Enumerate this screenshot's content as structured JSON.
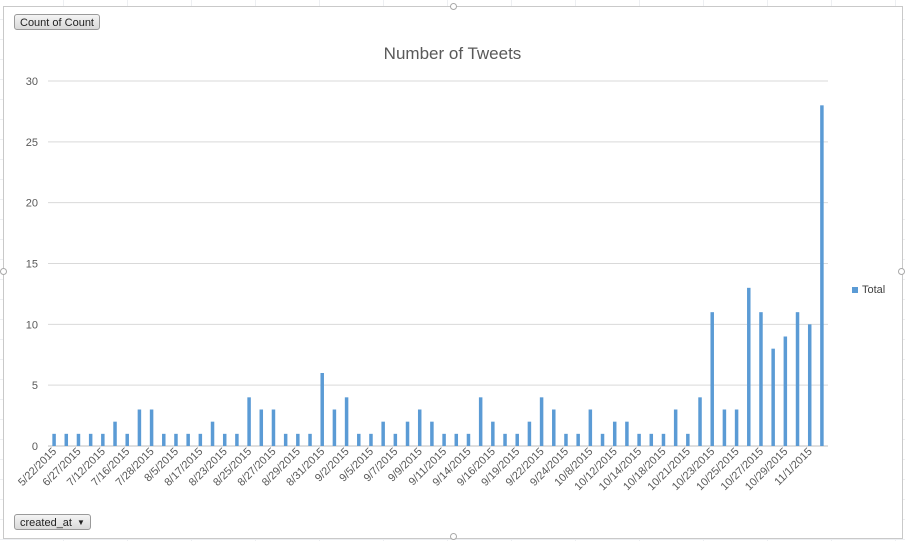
{
  "pivot_buttons": {
    "values_field": "Count of Count",
    "axis_field": "created_at",
    "dropdown_icon": "chevron-down-icon"
  },
  "chart_data": {
    "type": "bar",
    "title": "Number of Tweets",
    "xlabel": "",
    "ylabel": "",
    "ylim": [
      0,
      30
    ],
    "yticks": [
      0,
      5,
      10,
      15,
      20,
      25,
      30
    ],
    "grid": true,
    "legend_position": "right",
    "color": "#5b9bd5",
    "series": [
      {
        "name": "Total",
        "values": [
          1,
          1,
          1,
          1,
          1,
          2,
          1,
          3,
          3,
          1,
          1,
          1,
          1,
          2,
          1,
          1,
          4,
          3,
          3,
          1,
          1,
          1,
          6,
          3,
          4,
          1,
          1,
          2,
          1,
          2,
          3,
          2,
          1,
          1,
          1,
          4,
          2,
          1,
          1,
          2,
          4,
          3,
          1,
          1,
          3,
          1,
          2,
          2,
          1,
          1,
          1,
          3,
          1,
          4,
          11,
          3,
          3,
          13,
          11,
          8,
          9,
          11,
          10,
          28
        ]
      }
    ],
    "tick_labels": [
      "5/22/2015",
      "6/27/2015",
      "7/12/2015",
      "7/16/2015",
      "7/28/2015",
      "8/5/2015",
      "8/17/2015",
      "8/23/2015",
      "8/25/2015",
      "8/27/2015",
      "8/29/2015",
      "8/31/2015",
      "9/2/2015",
      "9/5/2015",
      "9/7/2015",
      "9/9/2015",
      "9/11/2015",
      "9/14/2015",
      "9/16/2015",
      "9/19/2015",
      "9/22/2015",
      "9/24/2015",
      "10/8/2015",
      "10/12/2015",
      "10/14/2015",
      "10/18/2015",
      "10/21/2015",
      "10/23/2015",
      "10/25/2015",
      "10/27/2015",
      "10/29/2015",
      "11/1/2015"
    ]
  }
}
